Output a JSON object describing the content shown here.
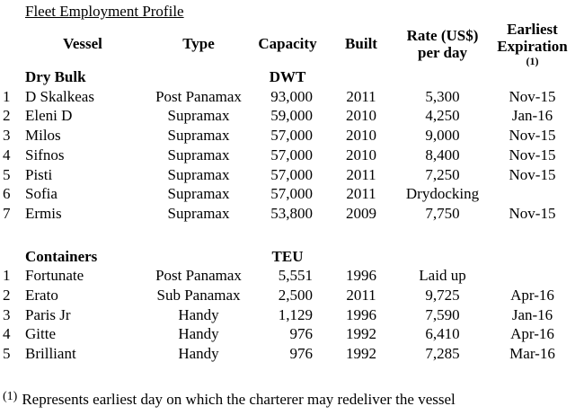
{
  "title": "Fleet Employment Profile",
  "columns": {
    "vessel": "Vessel",
    "type": "Type",
    "capacity": "Capacity",
    "built": "Built",
    "rate_line1": "Rate (US$)",
    "rate_line2": "per day",
    "expiration_line1": "Earliest",
    "expiration_line2": "Expiration",
    "expiration_note": "(1)"
  },
  "sections": [
    {
      "name": "Dry Bulk",
      "capacity_unit": "DWT",
      "rows": [
        {
          "num": "1",
          "vessel": "D Skalkeas",
          "type": "Post Panamax",
          "capacity": "93,000",
          "built": "2011",
          "rate": "5,300",
          "expiration": "Nov-15"
        },
        {
          "num": "2",
          "vessel": "Eleni D",
          "type": "Supramax",
          "capacity": "59,000",
          "built": "2010",
          "rate": "4,250",
          "expiration": "Jan-16"
        },
        {
          "num": "3",
          "vessel": "Milos",
          "type": "Supramax",
          "capacity": "57,000",
          "built": "2010",
          "rate": "9,000",
          "expiration": "Nov-15"
        },
        {
          "num": "4",
          "vessel": "Sifnos",
          "type": "Supramax",
          "capacity": "57,000",
          "built": "2010",
          "rate": "8,400",
          "expiration": "Nov-15"
        },
        {
          "num": "5",
          "vessel": "Pisti",
          "type": "Supramax",
          "capacity": "57,000",
          "built": "2011",
          "rate": "7,250",
          "expiration": "Nov-15"
        },
        {
          "num": "6",
          "vessel": "Sofia",
          "type": "Supramax",
          "capacity": "57,000",
          "built": "2011",
          "rate": "Drydocking",
          "expiration": ""
        },
        {
          "num": "7",
          "vessel": "Ermis",
          "type": "Supramax",
          "capacity": "53,800",
          "built": "2009",
          "rate": "7,750",
          "expiration": "Nov-15"
        }
      ]
    },
    {
      "name": "Containers",
      "capacity_unit": "TEU",
      "rows": [
        {
          "num": "1",
          "vessel": "Fortunate",
          "type": "Post Panamax",
          "capacity": "5,551",
          "built": "1996",
          "rate": "Laid up",
          "expiration": ""
        },
        {
          "num": "2",
          "vessel": "Erato",
          "type": "Sub Panamax",
          "capacity": "2,500",
          "built": "2011",
          "rate": "9,725",
          "expiration": "Apr-16"
        },
        {
          "num": "3",
          "vessel": "Paris Jr",
          "type": "Handy",
          "capacity": "1,129",
          "built": "1996",
          "rate": "7,590",
          "expiration": "Jan-16"
        },
        {
          "num": "4",
          "vessel": "Gitte",
          "type": "Handy",
          "capacity": "976",
          "built": "1992",
          "rate": "6,410",
          "expiration": "Apr-16"
        },
        {
          "num": "5",
          "vessel": "Brilliant",
          "type": "Handy",
          "capacity": "976",
          "built": "1992",
          "rate": "7,285",
          "expiration": "Mar-16"
        }
      ]
    }
  ],
  "footnote": {
    "marker": "(1)",
    "text": "Represents earliest day on which the charterer may redeliver the vessel"
  }
}
